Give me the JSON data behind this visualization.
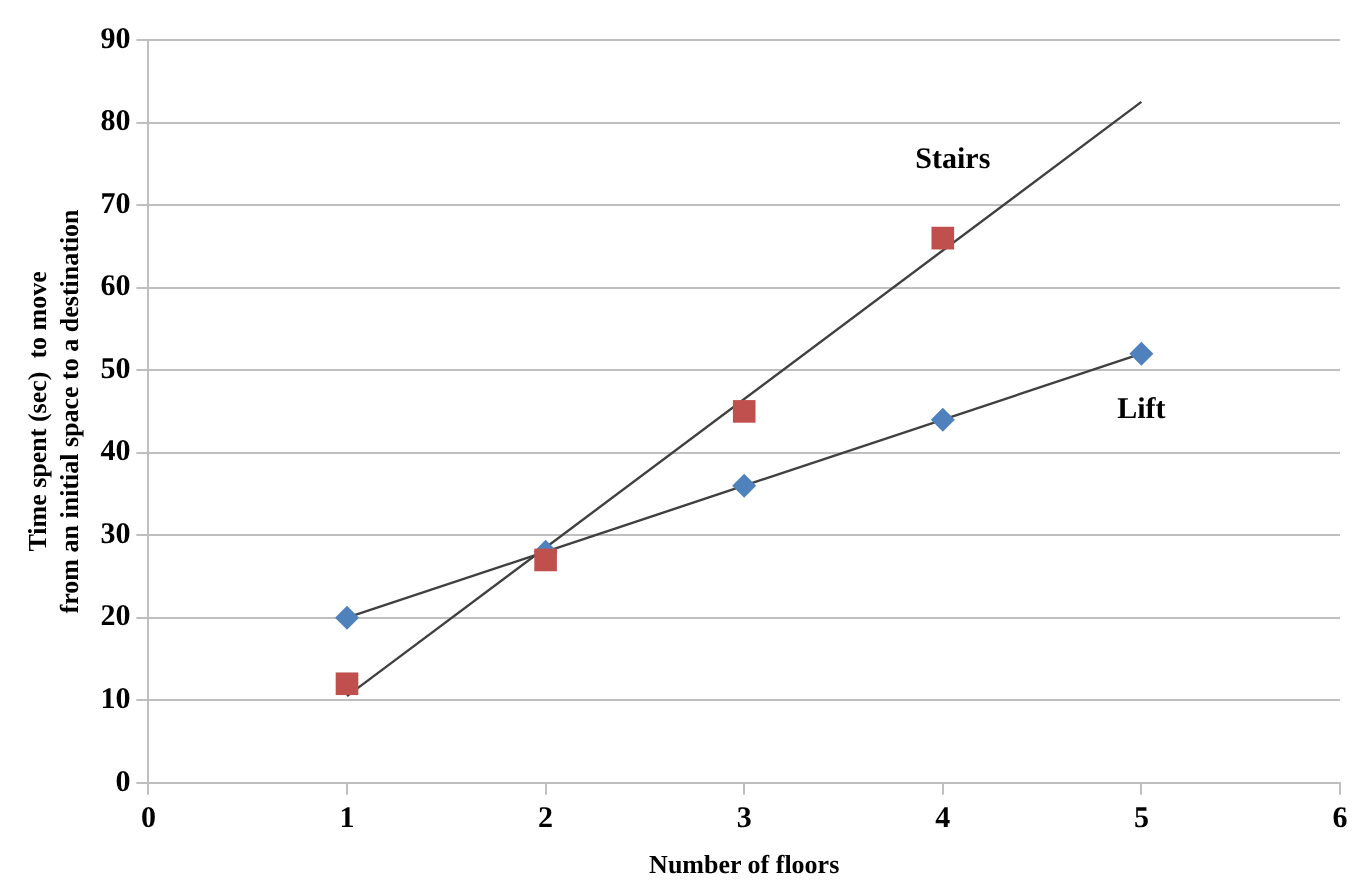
{
  "chart_data": {
    "type": "scatter",
    "xlabel": "Number of floors",
    "ylabel": "Time spent (sec)  to move\nfrom an initial space to a destination",
    "xlim": [
      0,
      6
    ],
    "xticks": [
      0,
      1,
      2,
      3,
      4,
      5,
      6
    ],
    "ylim": [
      0,
      90
    ],
    "yticks": [
      0,
      10,
      20,
      30,
      40,
      50,
      60,
      70,
      80,
      90
    ],
    "grid": "y",
    "legend": false,
    "series": [
      {
        "name": "Stairs",
        "marker": "square",
        "color": "#c0504d",
        "x": [
          1,
          2,
          3,
          4
        ],
        "values": [
          12,
          27,
          45,
          66
        ]
      },
      {
        "name": "Lift",
        "marker": "diamond",
        "color": "#4f81bd",
        "x": [
          1,
          2,
          3,
          4,
          5
        ],
        "values": [
          20,
          28,
          36,
          44,
          52
        ]
      },
      {
        "type": "line",
        "marker": "none",
        "color": "#404040",
        "x": [
          1,
          5
        ],
        "values": [
          10.5,
          82.5
        ]
      },
      {
        "type": "line",
        "marker": "none",
        "color": "#404040",
        "x": [
          1,
          5
        ],
        "values": [
          20,
          52
        ]
      }
    ]
  }
}
